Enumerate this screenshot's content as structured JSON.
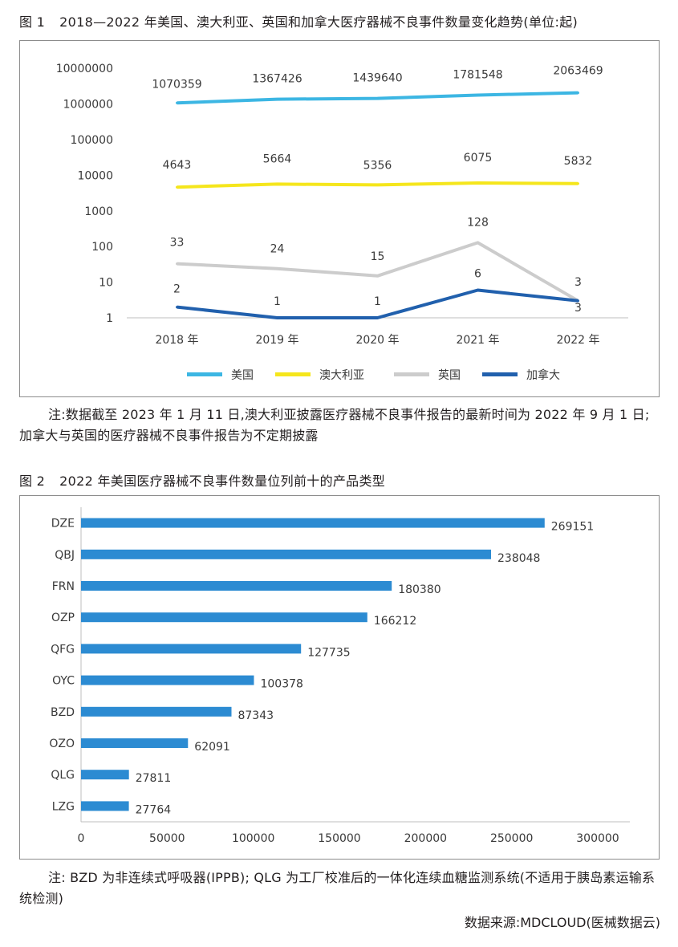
{
  "fig1": {
    "caption_num": "图 1",
    "caption_text": "2018—2022 年美国、澳大利亚、英国和加拿大医疗器械不良事件数量变化趋势(单位:起)",
    "note": "注:数据截至 2023 年 1 月 11 日,澳大利亚披露医疗器械不良事件报告的最新时间为 2022 年 9 月 1 日;加拿大与英国的医疗器械不良事件报告为不定期披露"
  },
  "fig2": {
    "caption_num": "图 2",
    "caption_text": "2022 年美国医疗器械不良事件数量位列前十的产品类型",
    "note": "注: BZD 为非连续式呼吸器(IPPB); QLG 为工厂校准后的一体化连续血糖监测系统(不适用于胰岛素运输系统检测)"
  },
  "source": "数据来源:MDCLOUD(医械数据云)",
  "chart_data": [
    {
      "type": "line",
      "title": "",
      "y_scale": "log",
      "ylim": [
        1,
        10000000
      ],
      "y_ticks": [
        "1",
        "10",
        "100",
        "1000",
        "10000",
        "100000",
        "1000000",
        "10000000"
      ],
      "categories": [
        "2018 年",
        "2019 年",
        "2020 年",
        "2021 年",
        "2022 年"
      ],
      "legend_position": "bottom",
      "grid": false,
      "series": [
        {
          "name": "美国",
          "color": "#3cb6e3",
          "values": [
            1070359,
            1367426,
            1439640,
            1781548,
            2063469
          ]
        },
        {
          "name": "澳大利亚",
          "color": "#f5e61c",
          "values": [
            4643,
            5664,
            5356,
            6075,
            5832
          ]
        },
        {
          "name": "英国",
          "color": "#cccccc",
          "values": [
            33,
            24,
            15,
            128,
            3
          ]
        },
        {
          "name": "加拿大",
          "color": "#2160ad",
          "values": [
            2,
            1,
            1,
            6,
            3
          ]
        }
      ]
    },
    {
      "type": "bar",
      "orientation": "horizontal",
      "title": "",
      "color": "#2c8bd2",
      "categories": [
        "DZE",
        "QBJ",
        "FRN",
        "OZP",
        "QFG",
        "OYC",
        "BZD",
        "OZO",
        "QLG",
        "LZG"
      ],
      "values": [
        269151,
        238048,
        180380,
        166212,
        127735,
        100378,
        87343,
        62091,
        27811,
        27764
      ],
      "xlim": [
        0,
        300000
      ],
      "x_ticks": [
        "0",
        "50000",
        "100000",
        "150000",
        "200000",
        "250000",
        "300000"
      ],
      "grid": false
    }
  ]
}
